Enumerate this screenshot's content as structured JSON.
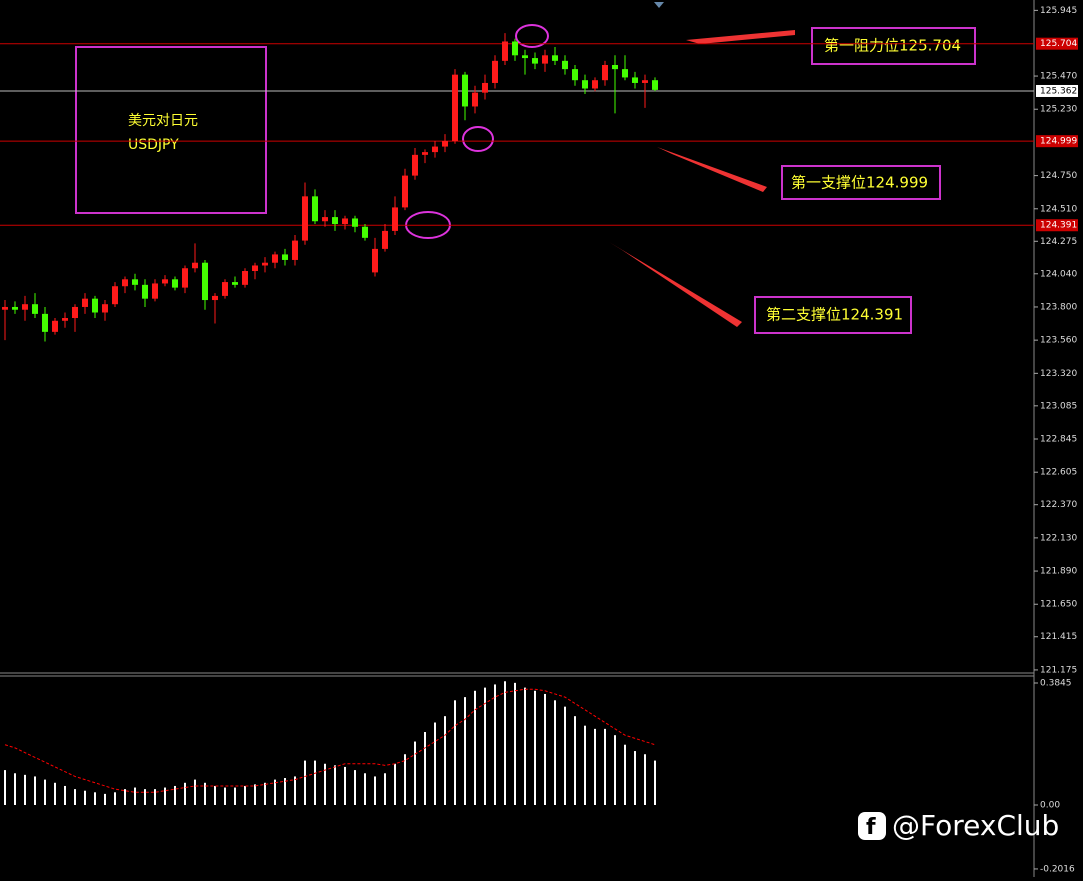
{
  "chart_data": [
    {
      "type": "candlestick",
      "title": "美元对日元",
      "symbol": "USDJPY",
      "ylim": [
        121.16,
        126.02
      ],
      "yticks": [
        {
          "value": 125.945,
          "label": "125.945"
        },
        {
          "value": 125.47,
          "label": "125.470"
        },
        {
          "value": 125.23,
          "label": "125.230"
        },
        {
          "value": 124.75,
          "label": "124.750"
        },
        {
          "value": 124.51,
          "label": "124.510"
        },
        {
          "value": 124.275,
          "label": "124.275"
        },
        {
          "value": 124.04,
          "label": "124.040"
        },
        {
          "value": 123.8,
          "label": "123.800"
        },
        {
          "value": 123.56,
          "label": "123.560"
        },
        {
          "value": 123.32,
          "label": "123.320"
        },
        {
          "value": 123.085,
          "label": "123.085"
        },
        {
          "value": 122.845,
          "label": "122.845"
        },
        {
          "value": 122.605,
          "label": "122.605"
        },
        {
          "value": 122.37,
          "label": "122.370"
        },
        {
          "value": 122.13,
          "label": "122.130"
        },
        {
          "value": 121.89,
          "label": "121.890"
        },
        {
          "value": 121.65,
          "label": "121.650"
        },
        {
          "value": 121.415,
          "label": "121.415"
        },
        {
          "value": 121.175,
          "label": "121.175"
        }
      ],
      "up_color": "#ff1a1a",
      "down_color": "#44ff00",
      "levels": [
        {
          "value": 125.704,
          "label": "125.704",
          "color": "#cc0000",
          "annotation": "第一阻力位125.704"
        },
        {
          "value": 125.362,
          "label": "125.362",
          "color": "#bbbbbb"
        },
        {
          "value": 124.999,
          "label": "124.999",
          "color": "#cc0000",
          "annotation": "第一支撑位124.999"
        },
        {
          "value": 124.391,
          "label": "124.391",
          "color": "#cc0000",
          "annotation": "第二支撑位124.391"
        }
      ],
      "watermark": "@ForexClub",
      "ohlc": [
        [
          123.78,
          123.85,
          123.56,
          123.8
        ],
        [
          123.8,
          123.84,
          123.75,
          123.78
        ],
        [
          123.78,
          123.88,
          123.7,
          123.82
        ],
        [
          123.82,
          123.9,
          123.72,
          123.75
        ],
        [
          123.75,
          123.8,
          123.55,
          123.62
        ],
        [
          123.62,
          123.72,
          123.6,
          123.7
        ],
        [
          123.7,
          123.76,
          123.65,
          123.72
        ],
        [
          123.72,
          123.82,
          123.62,
          123.8
        ],
        [
          123.8,
          123.9,
          123.75,
          123.86
        ],
        [
          123.86,
          123.88,
          123.72,
          123.76
        ],
        [
          123.76,
          123.85,
          123.7,
          123.82
        ],
        [
          123.82,
          123.98,
          123.8,
          123.95
        ],
        [
          123.95,
          124.02,
          123.9,
          124.0
        ],
        [
          124.0,
          124.04,
          123.92,
          123.96
        ],
        [
          123.96,
          124.0,
          123.8,
          123.86
        ],
        [
          123.86,
          124.0,
          123.84,
          123.97
        ],
        [
          123.97,
          124.03,
          123.95,
          124.0
        ],
        [
          124.0,
          124.02,
          123.92,
          123.94
        ],
        [
          123.94,
          124.1,
          123.9,
          124.08
        ],
        [
          124.08,
          124.26,
          124.05,
          124.12
        ],
        [
          124.12,
          124.14,
          123.78,
          123.85
        ],
        [
          123.85,
          123.9,
          123.68,
          123.88
        ],
        [
          123.88,
          124.0,
          123.86,
          123.98
        ],
        [
          123.98,
          124.02,
          123.94,
          123.96
        ],
        [
          123.96,
          124.08,
          123.94,
          124.06
        ],
        [
          124.06,
          124.12,
          124.0,
          124.1
        ],
        [
          124.1,
          124.16,
          124.05,
          124.12
        ],
        [
          124.12,
          124.2,
          124.08,
          124.18
        ],
        [
          124.18,
          124.22,
          124.1,
          124.14
        ],
        [
          124.14,
          124.32,
          124.1,
          124.28
        ],
        [
          124.28,
          124.7,
          124.25,
          124.6
        ],
        [
          124.6,
          124.65,
          124.4,
          124.42
        ],
        [
          124.42,
          124.5,
          124.38,
          124.45
        ],
        [
          124.45,
          124.5,
          124.35,
          124.4
        ],
        [
          124.4,
          124.46,
          124.36,
          124.44
        ],
        [
          124.44,
          124.46,
          124.34,
          124.38
        ],
        [
          124.38,
          124.4,
          124.28,
          124.3
        ],
        [
          124.05,
          124.3,
          124.02,
          124.22
        ],
        [
          124.22,
          124.4,
          124.2,
          124.35
        ],
        [
          124.35,
          124.6,
          124.32,
          124.52
        ],
        [
          124.52,
          124.8,
          124.5,
          124.75
        ],
        [
          124.75,
          124.95,
          124.72,
          124.9
        ],
        [
          124.9,
          124.94,
          124.84,
          124.92
        ],
        [
          124.92,
          125.0,
          124.88,
          124.96
        ],
        [
          124.96,
          125.05,
          124.92,
          125.0
        ],
        [
          125.0,
          125.52,
          124.98,
          125.48
        ],
        [
          125.48,
          125.5,
          125.15,
          125.25
        ],
        [
          125.25,
          125.4,
          125.2,
          125.35
        ],
        [
          125.35,
          125.48,
          125.3,
          125.42
        ],
        [
          125.42,
          125.62,
          125.38,
          125.58
        ],
        [
          125.58,
          125.78,
          125.55,
          125.72
        ],
        [
          125.72,
          125.74,
          125.58,
          125.62
        ],
        [
          125.62,
          125.66,
          125.48,
          125.6
        ],
        [
          125.6,
          125.64,
          125.52,
          125.56
        ],
        [
          125.56,
          125.66,
          125.5,
          125.62
        ],
        [
          125.62,
          125.68,
          125.55,
          125.58
        ],
        [
          125.58,
          125.62,
          125.48,
          125.52
        ],
        [
          125.52,
          125.55,
          125.4,
          125.44
        ],
        [
          125.44,
          125.48,
          125.34,
          125.38
        ],
        [
          125.38,
          125.46,
          125.36,
          125.44
        ],
        [
          125.44,
          125.58,
          125.4,
          125.55
        ],
        [
          125.55,
          125.62,
          125.2,
          125.52
        ],
        [
          125.52,
          125.62,
          125.44,
          125.46
        ],
        [
          125.46,
          125.5,
          125.38,
          125.42
        ],
        [
          125.42,
          125.48,
          125.24,
          125.44
        ],
        [
          125.44,
          125.46,
          125.36,
          125.37
        ]
      ]
    },
    {
      "type": "macd",
      "ylim": [
        -0.227,
        0.4066
      ],
      "yticks": [
        0.3845,
        {
          "value": 0,
          "label": "0.00"
        },
        -0.2016
      ],
      "hist_color": "#ffffff",
      "signal_color": "#ff0000",
      "histogram": [
        0.11,
        0.1,
        0.095,
        0.09,
        0.08,
        0.07,
        0.06,
        0.05,
        0.045,
        0.04,
        0.035,
        0.04,
        0.05,
        0.055,
        0.05,
        0.05,
        0.055,
        0.06,
        0.07,
        0.08,
        0.07,
        0.06,
        0.055,
        0.055,
        0.06,
        0.065,
        0.07,
        0.08,
        0.085,
        0.09,
        0.14,
        0.14,
        0.13,
        0.125,
        0.12,
        0.11,
        0.1,
        0.09,
        0.1,
        0.13,
        0.16,
        0.2,
        0.23,
        0.26,
        0.28,
        0.33,
        0.34,
        0.36,
        0.37,
        0.38,
        0.39,
        0.385,
        0.37,
        0.36,
        0.35,
        0.33,
        0.31,
        0.28,
        0.25,
        0.24,
        0.24,
        0.22,
        0.19,
        0.17,
        0.16,
        0.14
      ],
      "signal": [
        0.19,
        0.18,
        0.165,
        0.15,
        0.135,
        0.12,
        0.105,
        0.09,
        0.08,
        0.07,
        0.06,
        0.05,
        0.045,
        0.04,
        0.04,
        0.04,
        0.045,
        0.05,
        0.055,
        0.06,
        0.06,
        0.06,
        0.06,
        0.06,
        0.06,
        0.06,
        0.065,
        0.07,
        0.075,
        0.08,
        0.09,
        0.1,
        0.11,
        0.12,
        0.13,
        0.13,
        0.13,
        0.13,
        0.125,
        0.13,
        0.14,
        0.16,
        0.18,
        0.2,
        0.22,
        0.25,
        0.27,
        0.3,
        0.32,
        0.34,
        0.355,
        0.36,
        0.365,
        0.365,
        0.36,
        0.35,
        0.34,
        0.32,
        0.3,
        0.28,
        0.26,
        0.24,
        0.22,
        0.21,
        0.2,
        0.19
      ]
    }
  ]
}
